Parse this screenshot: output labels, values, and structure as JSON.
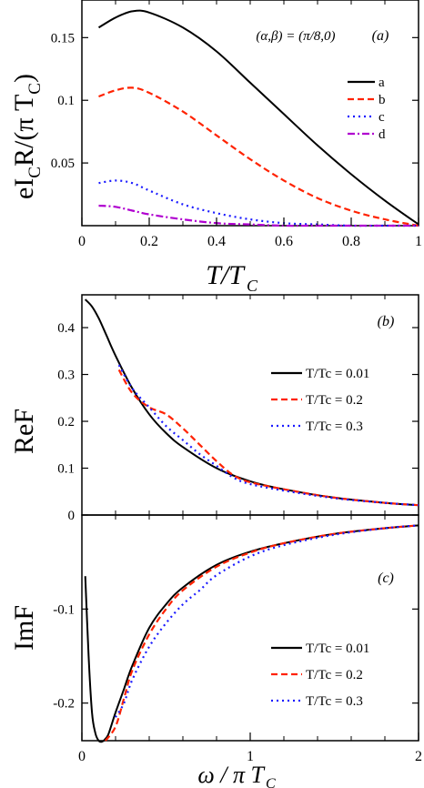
{
  "chart_data": [
    {
      "type": "line",
      "panel_label": "(a)",
      "annotation": "(α,β) = (π/8,0)",
      "xlabel": "T/T",
      "xlabel_sub": "C",
      "ylabel": "eI",
      "ylabel_sub1": "C",
      "ylabel_mid": "R/(π T",
      "ylabel_sub2": "C",
      "ylabel_end": ")",
      "xlim": [
        0,
        1
      ],
      "ylim": [
        0,
        0.18
      ],
      "x_ticks": [
        0,
        0.2,
        0.4,
        0.6,
        0.8,
        1
      ],
      "x_tick_labels": [
        "0",
        "0.2",
        "0.4",
        "0.6",
        "0.8",
        "1"
      ],
      "y_ticks": [
        0.05,
        0.1,
        0.15
      ],
      "y_tick_labels": [
        "0.05",
        "0.1",
        "0.15"
      ],
      "legend_position": "right",
      "series": [
        {
          "name": "a",
          "color": "#000000",
          "dash": "solid",
          "x": [
            0.05,
            0.1,
            0.15,
            0.2,
            0.3,
            0.4,
            0.5,
            0.6,
            0.7,
            0.8,
            0.9,
            1.0
          ],
          "y": [
            0.158,
            0.166,
            0.171,
            0.17,
            0.158,
            0.139,
            0.114,
            0.089,
            0.064,
            0.041,
            0.02,
            0.001
          ]
        },
        {
          "name": "b",
          "color": "#ff2200",
          "dash": "dashed",
          "x": [
            0.05,
            0.1,
            0.15,
            0.2,
            0.3,
            0.4,
            0.5,
            0.6,
            0.7,
            0.8,
            0.9,
            1.0
          ],
          "y": [
            0.103,
            0.108,
            0.11,
            0.106,
            0.091,
            0.072,
            0.053,
            0.036,
            0.022,
            0.012,
            0.005,
            0.0
          ]
        },
        {
          "name": "c",
          "color": "#1a1aff",
          "dash": "dotted",
          "x": [
            0.05,
            0.1,
            0.15,
            0.2,
            0.3,
            0.4,
            0.5,
            0.6,
            0.7,
            0.8,
            0.9,
            1.0
          ],
          "y": [
            0.034,
            0.036,
            0.034,
            0.028,
            0.017,
            0.01,
            0.005,
            0.002,
            0.001,
            0.0,
            0.0,
            0.0
          ]
        },
        {
          "name": "d",
          "color": "#b000d0",
          "dash": "dashdot",
          "x": [
            0.05,
            0.1,
            0.15,
            0.2,
            0.3,
            0.4,
            0.5,
            0.6,
            0.7,
            0.8,
            0.9,
            1.0
          ],
          "y": [
            0.016,
            0.015,
            0.012,
            0.009,
            0.005,
            0.002,
            0.001,
            0.0,
            0.0,
            0.0,
            0.0,
            0.0
          ]
        }
      ]
    },
    {
      "type": "line",
      "panel_label": "(b)",
      "ylabel": "ReF",
      "xlim": [
        0,
        2
      ],
      "ylim": [
        0,
        0.47
      ],
      "y_ticks": [
        0,
        0.1,
        0.2,
        0.3,
        0.4
      ],
      "y_tick_labels": [
        "0",
        "0.1",
        "0.2",
        "0.3",
        "0.4"
      ],
      "legend_position": "right",
      "series": [
        {
          "name": "T/Tc = 0.01",
          "color": "#000000",
          "dash": "solid",
          "x": [
            0.02,
            0.06,
            0.1,
            0.15,
            0.2,
            0.3,
            0.4,
            0.5,
            0.6,
            0.8,
            1.0,
            1.2,
            1.5,
            1.8,
            2.0
          ],
          "y": [
            0.46,
            0.445,
            0.42,
            0.38,
            0.34,
            0.27,
            0.215,
            0.175,
            0.145,
            0.1,
            0.072,
            0.055,
            0.037,
            0.026,
            0.021
          ]
        },
        {
          "name": "T/Tc = 0.2",
          "color": "#ff2200",
          "dash": "dashed",
          "x": [
            0.22,
            0.3,
            0.4,
            0.5,
            0.6,
            0.7,
            0.8,
            0.9,
            1.0,
            1.2,
            1.5,
            1.8,
            2.0
          ],
          "y": [
            0.31,
            0.26,
            0.23,
            0.215,
            0.185,
            0.15,
            0.115,
            0.085,
            0.07,
            0.055,
            0.037,
            0.026,
            0.021
          ]
        },
        {
          "name": "T/Tc = 0.3",
          "color": "#1a1aff",
          "dash": "dotted",
          "x": [
            0.22,
            0.3,
            0.4,
            0.5,
            0.6,
            0.7,
            0.8,
            0.9,
            1.0,
            1.2,
            1.5,
            1.8,
            2.0
          ],
          "y": [
            0.32,
            0.27,
            0.23,
            0.19,
            0.16,
            0.13,
            0.105,
            0.08,
            0.066,
            0.052,
            0.036,
            0.026,
            0.021
          ]
        }
      ]
    },
    {
      "type": "line",
      "panel_label": "(c)",
      "ylabel": "ImF",
      "xlabel": "ω / π T",
      "xlabel_sub": "C",
      "xlim": [
        0,
        2
      ],
      "ylim": [
        -0.24,
        0
      ],
      "x_ticks": [
        0,
        1,
        2
      ],
      "x_tick_labels": [
        "0",
        "1",
        "2"
      ],
      "y_ticks": [
        -0.1,
        -0.2
      ],
      "y_tick_labels": [
        "-0.1",
        "-0.2"
      ],
      "legend_position": "lower-right",
      "series": [
        {
          "name": "T/Tc = 0.01",
          "color": "#000000",
          "dash": "solid",
          "x": [
            0.02,
            0.04,
            0.06,
            0.08,
            0.1,
            0.12,
            0.14,
            0.16,
            0.2,
            0.25,
            0.3,
            0.4,
            0.5,
            0.6,
            0.8,
            1.0,
            1.2,
            1.5,
            1.8,
            2.0
          ],
          "y": [
            -0.065,
            -0.15,
            -0.21,
            -0.232,
            -0.24,
            -0.241,
            -0.238,
            -0.232,
            -0.21,
            -0.185,
            -0.16,
            -0.12,
            -0.095,
            -0.077,
            -0.053,
            -0.039,
            -0.03,
            -0.02,
            -0.014,
            -0.011
          ]
        },
        {
          "name": "T/Tc = 0.2",
          "color": "#ff2200",
          "dash": "dashed",
          "x": [
            0.14,
            0.2,
            0.25,
            0.3,
            0.4,
            0.5,
            0.6,
            0.8,
            1.0,
            1.2,
            1.5,
            1.8,
            2.0
          ],
          "y": [
            -0.24,
            -0.225,
            -0.195,
            -0.165,
            -0.127,
            -0.1,
            -0.08,
            -0.055,
            -0.04,
            -0.03,
            -0.02,
            -0.014,
            -0.011
          ]
        },
        {
          "name": "T/Tc = 0.3",
          "color": "#1a1aff",
          "dash": "dotted",
          "x": [
            0.2,
            0.25,
            0.3,
            0.4,
            0.5,
            0.6,
            0.7,
            0.8,
            1.0,
            1.2,
            1.5,
            1.8,
            2.0
          ],
          "y": [
            -0.215,
            -0.2,
            -0.175,
            -0.14,
            -0.115,
            -0.095,
            -0.08,
            -0.064,
            -0.044,
            -0.032,
            -0.021,
            -0.014,
            -0.011
          ]
        }
      ]
    }
  ]
}
